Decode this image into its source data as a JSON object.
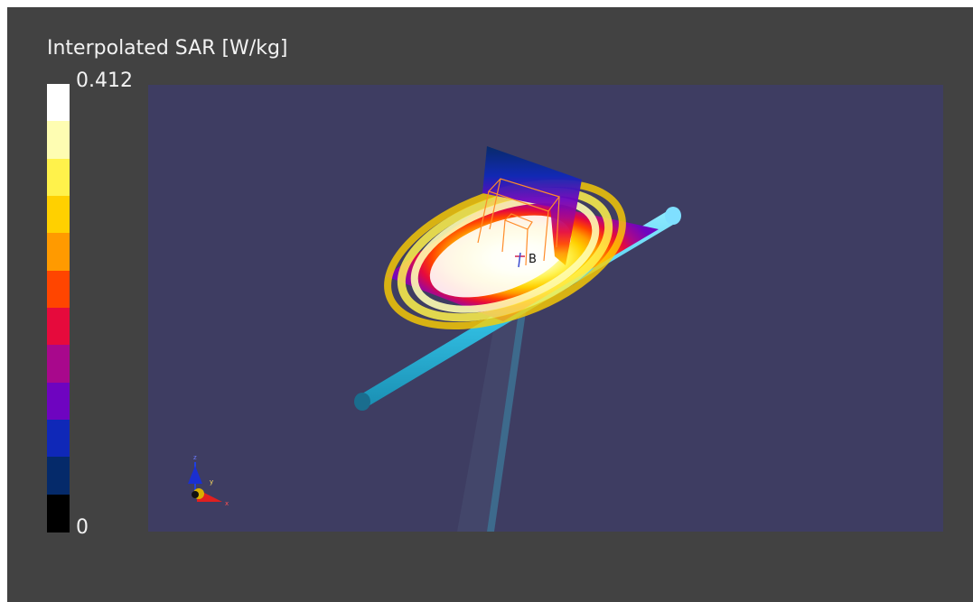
{
  "legend": {
    "title": "Interpolated SAR [W/kg]",
    "max_label": "0.412",
    "min_label": "0",
    "colors_top_to_bottom": [
      "#ffffff",
      "#fefdb2",
      "#fff24b",
      "#ffd000",
      "#ff9a00",
      "#ff4500",
      "#e60a3c",
      "#a8088c",
      "#6e04c0",
      "#0f28b8",
      "#052a6a",
      "#000000"
    ]
  },
  "scene": {
    "background_color": "#3e3d62",
    "probe_label": "B",
    "axes_labels": {
      "x": "x",
      "y": "y",
      "z": "z"
    }
  }
}
